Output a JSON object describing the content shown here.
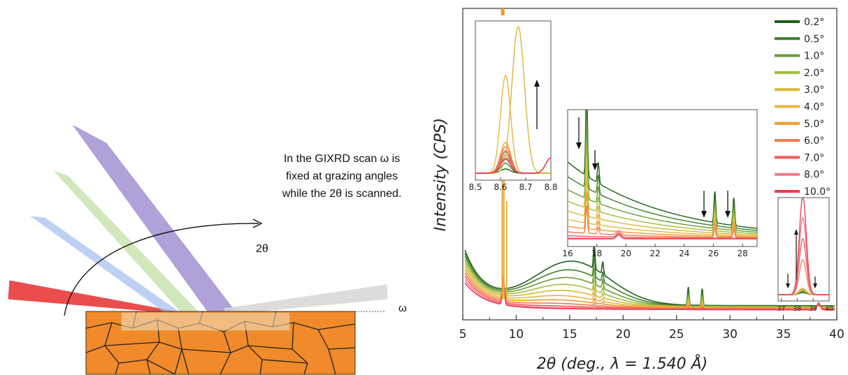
{
  "diagram": {
    "annotation_lines": [
      "In the GIXRD scan ω is",
      "fixed at grazing angles",
      "while the 2θ is scanned."
    ],
    "two_theta_label": "2θ",
    "omega_label": "ω",
    "beam_colors": [
      "#e83a3a",
      "#a9c2f0",
      "#c2e0a6",
      "#9d8ad0",
      "#d6d6d6"
    ],
    "sample_color": "#f08a2a"
  },
  "chart_data": [
    {
      "type": "line",
      "role": "main",
      "xlabel": "2θ (deg., λ = 1.540 Å)",
      "ylabel": "Intensity (CPS)",
      "xlim": [
        5,
        40
      ],
      "xticks": [
        5,
        10,
        15,
        20,
        25,
        30,
        35,
        40
      ],
      "legend_position": "top-right",
      "series": [
        {
          "name": "0.2°",
          "color": "#1f5f1c",
          "values": []
        },
        {
          "name": "0.5°",
          "color": "#3f7f2a",
          "values": []
        },
        {
          "name": "1.0°",
          "color": "#6a9e34",
          "values": []
        },
        {
          "name": "2.0°",
          "color": "#9fbf3a",
          "values": []
        },
        {
          "name": "3.0°",
          "color": "#d8b83a",
          "values": []
        },
        {
          "name": "4.0°",
          "color": "#e8b640",
          "values": []
        },
        {
          "name": "5.0°",
          "color": "#f29a2c",
          "values": []
        },
        {
          "name": "6.0°",
          "color": "#f07a52",
          "values": []
        },
        {
          "name": "7.0°",
          "color": "#f25a5a",
          "values": []
        },
        {
          "name": "8.0°",
          "color": "#f07a8c",
          "values": []
        },
        {
          "name": "10.0°",
          "color": "#ee3a50",
          "values": []
        }
      ]
    },
    {
      "type": "line",
      "role": "inset-top-left",
      "xlim": [
        8.5,
        8.8
      ],
      "xticks": [
        "8.5",
        "8.6",
        "8.7",
        "8.8"
      ]
    },
    {
      "type": "line",
      "role": "inset-middle",
      "xlim": [
        16,
        29
      ],
      "xticks": [
        "16",
        "18",
        "20",
        "22",
        "24",
        "26",
        "28"
      ]
    },
    {
      "type": "line",
      "role": "inset-bottom-right",
      "xlim": [
        36.8,
        40
      ],
      "xticks": [
        "37",
        "38",
        "39",
        "40"
      ]
    }
  ]
}
